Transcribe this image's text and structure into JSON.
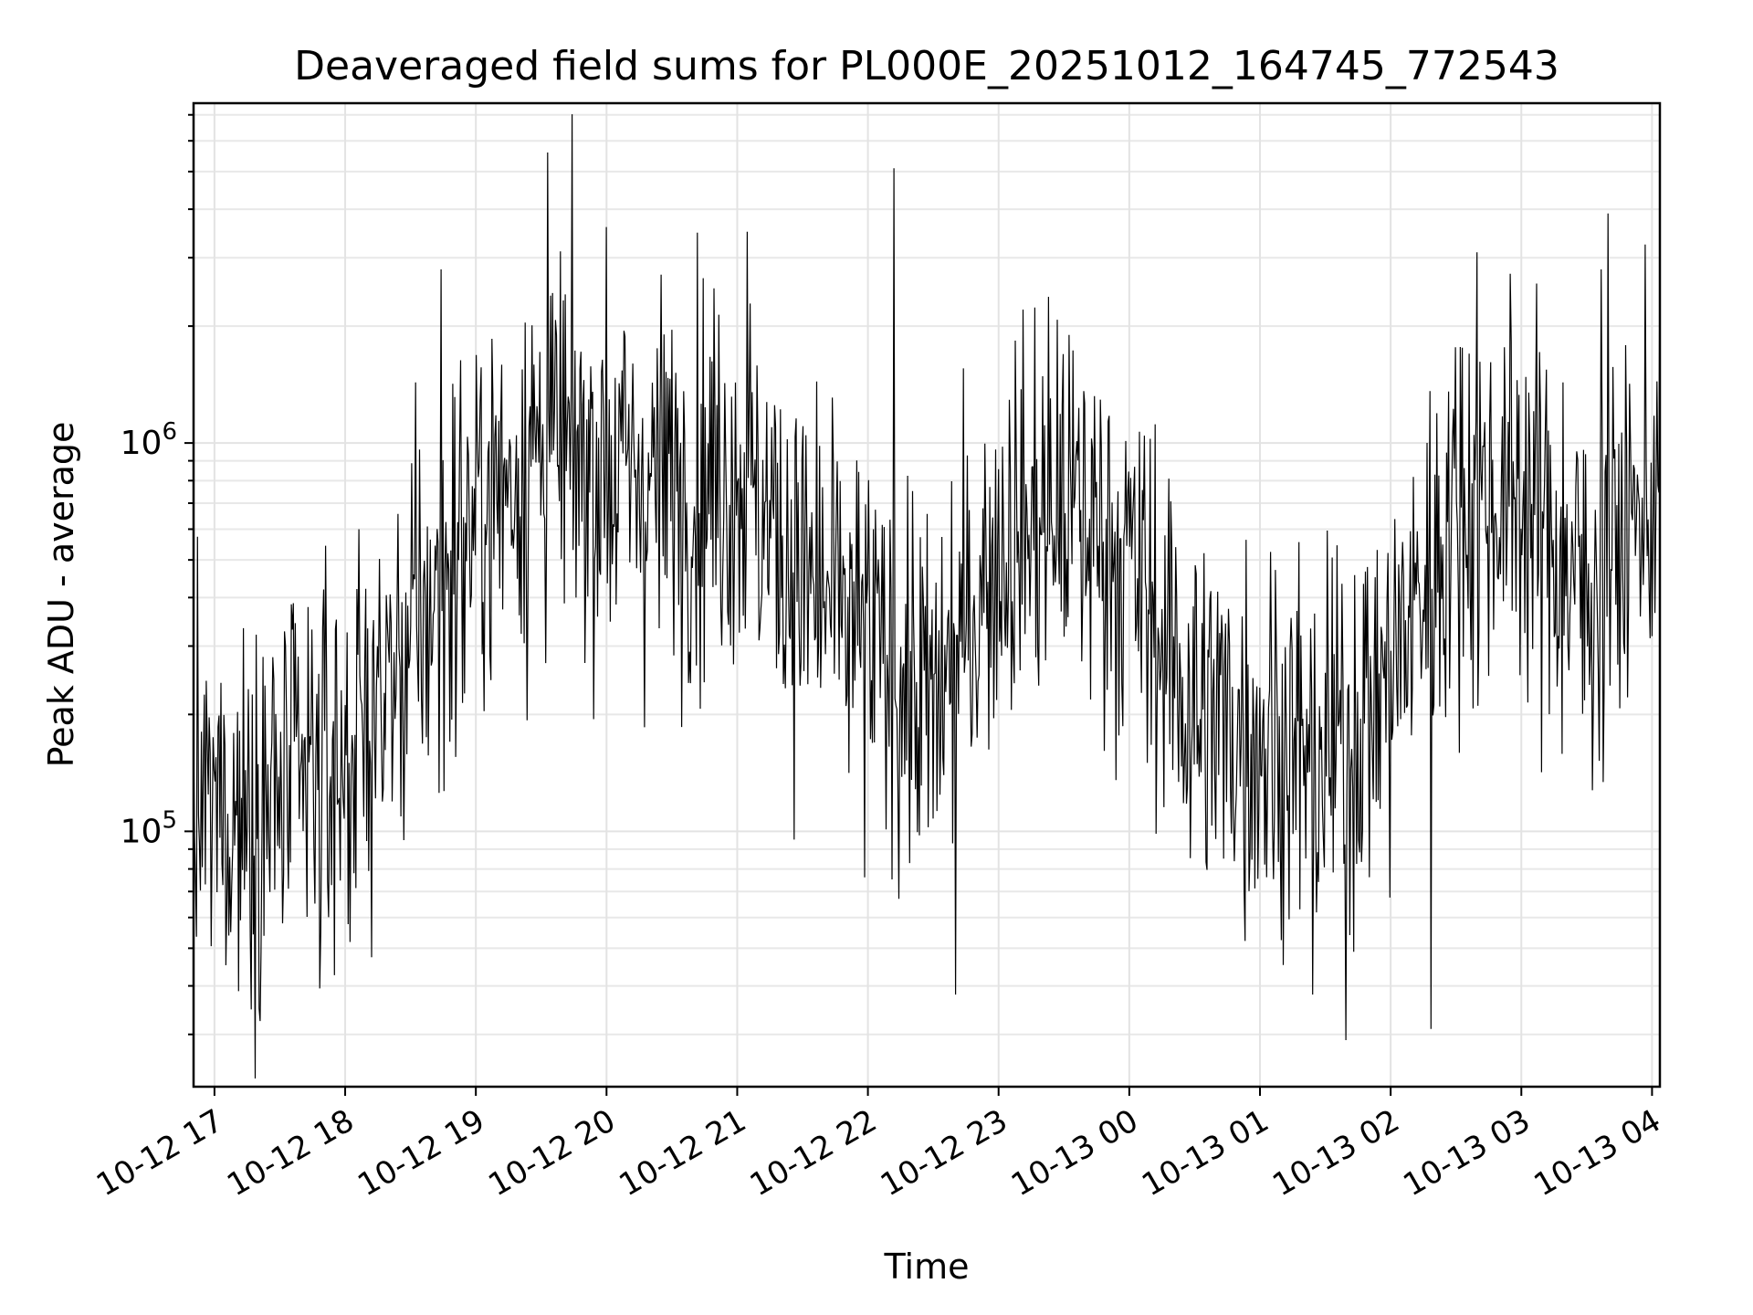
{
  "chart_data": {
    "type": "line",
    "title": "Deaveraged field sums for PL000E_20251012_164745_772543",
    "xlabel": "Time",
    "ylabel": "Peak ADU - average",
    "yscale": "log",
    "ylim": [
      22000,
      7500000
    ],
    "y_major_ticks": [
      {
        "value": 100000,
        "base": "10",
        "exp": "5"
      },
      {
        "value": 1000000,
        "base": "10",
        "exp": "6"
      }
    ],
    "x_range_hours": [
      -0.16,
      11.06
    ],
    "x_ticks": [
      {
        "hour": 0,
        "label": "10-12 17"
      },
      {
        "hour": 1,
        "label": "10-12 18"
      },
      {
        "hour": 2,
        "label": "10-12 19"
      },
      {
        "hour": 3,
        "label": "10-12 20"
      },
      {
        "hour": 4,
        "label": "10-12 21"
      },
      {
        "hour": 5,
        "label": "10-12 22"
      },
      {
        "hour": 6,
        "label": "10-12 23"
      },
      {
        "hour": 7,
        "label": "10-13 00"
      },
      {
        "hour": 8,
        "label": "10-13 01"
      },
      {
        "hour": 9,
        "label": "10-13 02"
      },
      {
        "hour": 10,
        "label": "10-13 03"
      },
      {
        "hour": 11,
        "label": "10-13 04"
      }
    ],
    "grid": true,
    "series": [
      {
        "name": "Peak ADU - average",
        "x_hours_start": -0.16,
        "x_hours_end": 11.06,
        "trend_hours": [
          -0.16,
          0.5,
          1.0,
          1.5,
          2.0,
          2.5,
          3.0,
          3.5,
          4.0,
          4.5,
          5.0,
          5.5,
          6.0,
          6.5,
          7.0,
          7.5,
          8.0,
          8.5,
          9.0,
          9.5,
          10.0,
          10.5,
          11.06
        ],
        "trend_values": [
          110000,
          120000,
          150000,
          300000,
          650000,
          1000000,
          850000,
          800000,
          850000,
          450000,
          300000,
          200000,
          550000,
          700000,
          500000,
          200000,
          180000,
          150000,
          250000,
          700000,
          750000,
          400000,
          800000
        ],
        "spikes": [
          {
            "hour": 2.55,
            "value": 5600000
          },
          {
            "hour": 5.2,
            "value": 5100000
          },
          {
            "hour": 10.66,
            "value": 3900000
          },
          {
            "hour": 4.08,
            "value": 3500000
          },
          {
            "hour": 3.0,
            "value": 3600000
          },
          {
            "hour": 9.66,
            "value": 3100000
          },
          {
            "hour": 1.73,
            "value": 2800000
          },
          {
            "hour": 10.61,
            "value": 2800000
          },
          {
            "hour": 8.66,
            "value": 29000
          },
          {
            "hour": 9.31,
            "value": 31000
          },
          {
            "hour": 0.34,
            "value": 35000
          },
          {
            "hour": 5.67,
            "value": 38000
          },
          {
            "hour": 8.4,
            "value": 38000
          }
        ]
      }
    ]
  }
}
